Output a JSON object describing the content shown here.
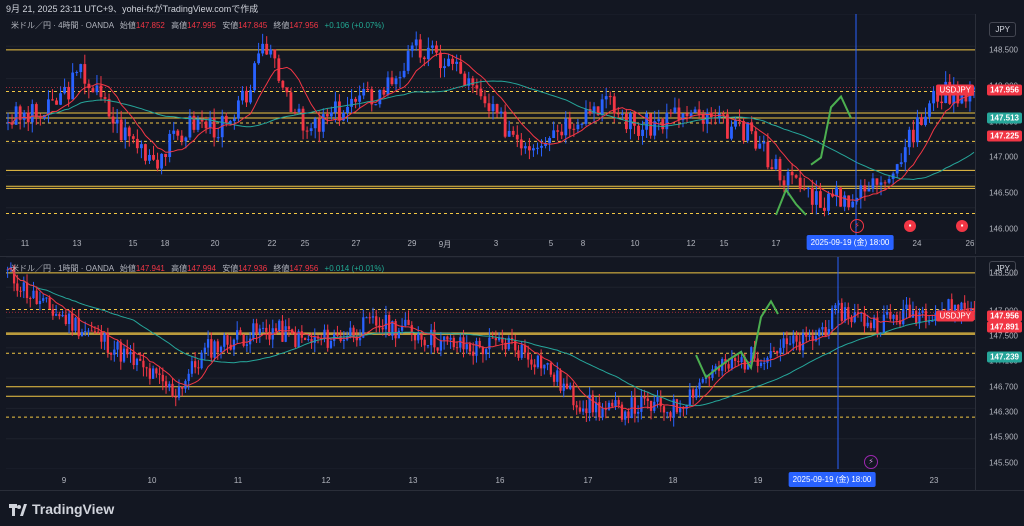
{
  "header": {
    "caption": "9月 21, 2025 23:11 UTC+9、yohei-fxがTradingView.comで作成"
  },
  "colors": {
    "bg": "#131722",
    "up": "#2962ff",
    "down": "#f23645",
    "ma_fast": "#f23645",
    "ma_slow": "#26a69a",
    "level": "#f2c744",
    "green": "#4caf50",
    "cursor": "#2962ff"
  },
  "pane1": {
    "symbol": "米ドル／円",
    "interval": "4時間",
    "source": "OANDA",
    "sep": " · ",
    "open_label": "始値",
    "open": "147.852",
    "high_label": "高値",
    "high": "147.995",
    "low_label": "安値",
    "low": "147.845",
    "close_label": "終値",
    "close": "147.956",
    "change": "+0.106 (+0.07%)",
    "currency": "JPY",
    "symbol_tag": "USDJPY",
    "price_badge": "147.956",
    "ma_badge": "147.513",
    "ma2_badge": "147.225",
    "price_ticks": [
      "148.500",
      "148.000",
      "147.500",
      "147.000",
      "146.500",
      "146.000"
    ],
    "x_labels": [
      "11",
      "13",
      "15",
      "18",
      "20",
      "22",
      "25",
      "27",
      "29",
      "9月",
      "3",
      "5",
      "8",
      "10",
      "12",
      "15",
      "17",
      "24",
      "26"
    ],
    "cursor_label": "2025-09-19 (金)  18:00",
    "levels": [
      148.5,
      147.62,
      147.55,
      146.82,
      146.6,
      146.57
    ],
    "dashed_levels": [
      147.92,
      147.48,
      147.225,
      146.22
    ],
    "range": [
      145.85,
      149.0
    ]
  },
  "pane2": {
    "symbol": "米ドル／円",
    "interval": "1時間",
    "source": "OANDA",
    "sep": " · ",
    "open_label": "始値",
    "open": "147.941",
    "high_label": "高値",
    "high": "147.994",
    "low_label": "安値",
    "low": "147.936",
    "close_label": "終値",
    "close": "147.956",
    "change": "+0.014 (+0.01%)",
    "currency": "JPY",
    "symbol_tag": "USDJPY",
    "price_badge": "147.956",
    "ma_badge": "147.891",
    "ma2_badge": "147.239",
    "price_ticks": [
      "148.500",
      "147.900",
      "147.500",
      "147.100",
      "146.700",
      "146.300",
      "145.900",
      "145.500"
    ],
    "x_labels": [
      "9",
      "10",
      "11",
      "12",
      "13",
      "16",
      "17",
      "18",
      "19",
      "23"
    ],
    "cursor_label": "2025-09-19 (金)  18:00",
    "levels": [
      148.5,
      147.55,
      147.53,
      146.7,
      146.55
    ],
    "dashed_levels": [
      147.92,
      147.23,
      146.22
    ],
    "range": [
      145.4,
      148.75
    ]
  },
  "footer": {
    "brand": "TradingView"
  }
}
